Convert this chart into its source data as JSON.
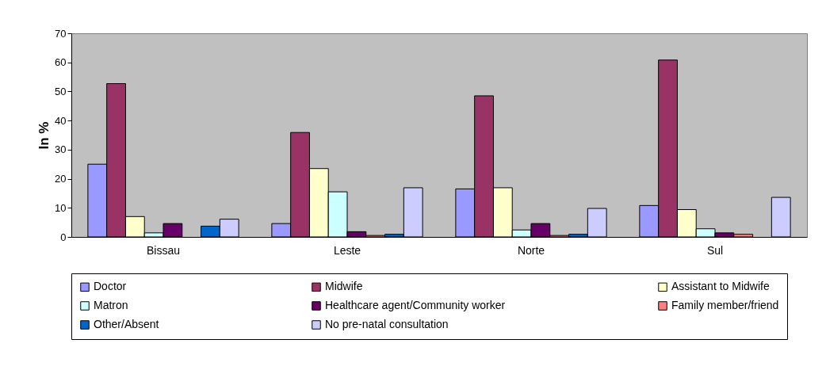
{
  "chart_data": {
    "type": "bar",
    "ylabel": "In %",
    "categories": [
      "Bissau",
      "Leste",
      "Norte",
      "Sul"
    ],
    "ylim": [
      0,
      70
    ],
    "yticks": [
      0,
      10,
      20,
      30,
      40,
      50,
      60,
      70
    ],
    "grid": false,
    "legend": "bottom",
    "series": [
      {
        "name": "Doctor",
        "color": "#9999ff",
        "values": [
          25,
          4.6,
          16.5,
          10.8
        ]
      },
      {
        "name": "Midwife",
        "color": "#993366",
        "values": [
          52.7,
          35.9,
          48.5,
          60.8
        ]
      },
      {
        "name": "Assistant to Midwife",
        "color": "#ffffcc",
        "values": [
          7,
          23.5,
          16.9,
          9.4
        ]
      },
      {
        "name": "Matron",
        "color": "#ccffff",
        "values": [
          1.4,
          15.5,
          2.4,
          2.8
        ]
      },
      {
        "name": "Healthcare agent/Community worker",
        "color": "#660066",
        "values": [
          4.6,
          1.8,
          4.6,
          1.4
        ]
      },
      {
        "name": "Family member/friend",
        "color": "#ff8080",
        "values": [
          null,
          0.5,
          0.5,
          0.9
        ]
      },
      {
        "name": "Other/Absent",
        "color": "#0066cc",
        "values": [
          3.7,
          0.9,
          0.9,
          null
        ]
      },
      {
        "name": "No pre-natal consultation",
        "color": "#ccccff",
        "values": [
          6.1,
          16.9,
          9.8,
          13.6
        ]
      }
    ]
  }
}
